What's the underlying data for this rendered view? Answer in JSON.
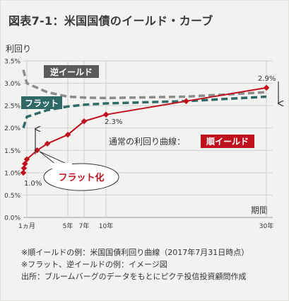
{
  "title": "図表7-1：米国国債のイールド・カーブ",
  "chart_data": {
    "type": "line",
    "ylabel": "利回り",
    "xlabel": "期間",
    "ylim": [
      0,
      3.5
    ],
    "y_ticks": [
      "0.0%",
      "0.5%",
      "1.0%",
      "1.5%",
      "2.0%",
      "2.5%",
      "3.0%",
      "3.5%"
    ],
    "x_ticks": [
      {
        "x": 1,
        "label": "1ヵ月"
      },
      {
        "x": 5,
        "label": "5年"
      },
      {
        "x": 7,
        "label": "7年"
      },
      {
        "x": 10,
        "label": "10年"
      },
      {
        "x": 30,
        "label": "30年"
      }
    ],
    "grid": true,
    "series": [
      {
        "name": "順イールド",
        "style": "solid",
        "color": "#c0111f",
        "x": [
          0.08,
          0.25,
          0.5,
          1,
          2,
          3,
          5,
          7,
          10,
          20,
          30
        ],
        "y": [
          1.0,
          1.1,
          1.2,
          1.3,
          1.5,
          1.65,
          1.85,
          2.15,
          2.3,
          2.6,
          2.9
        ]
      },
      {
        "name": "逆イールド",
        "style": "dashed",
        "color": "#8c8c8c",
        "x": [
          0.08,
          1,
          3,
          5,
          7,
          10,
          20,
          30
        ],
        "y": [
          3.3,
          3.0,
          2.8,
          2.7,
          2.68,
          2.67,
          2.7,
          2.8
        ]
      },
      {
        "name": "フラット",
        "style": "dashed",
        "color": "#2f6a66",
        "x": [
          0.08,
          1,
          3,
          5,
          7,
          10,
          20,
          30
        ],
        "y": [
          2.0,
          2.25,
          2.4,
          2.48,
          2.52,
          2.55,
          2.6,
          2.7
        ]
      }
    ],
    "annotations": {
      "start_value": "1.0%",
      "mid_value": "2.3%",
      "end_value": "2.9%",
      "normal_caption": "通常の利回り曲線：",
      "normal_label": "順イールド",
      "inverted_label": "逆イールド",
      "flat_label": "フラット",
      "flattening_label": "フラット化"
    }
  },
  "notes": [
    "※順イールドの例：米国国債利回り曲線（2017年7月31日時点）",
    "※フラット、逆イールドの例：イメージ図",
    "出所：ブルームバーグのデータをもとにピクテ投信投資顧問作成"
  ],
  "colors": {
    "red": "#c0111f",
    "gray": "#8c8c8c",
    "teal": "#2f6a66",
    "background": "#f2f2f0"
  }
}
